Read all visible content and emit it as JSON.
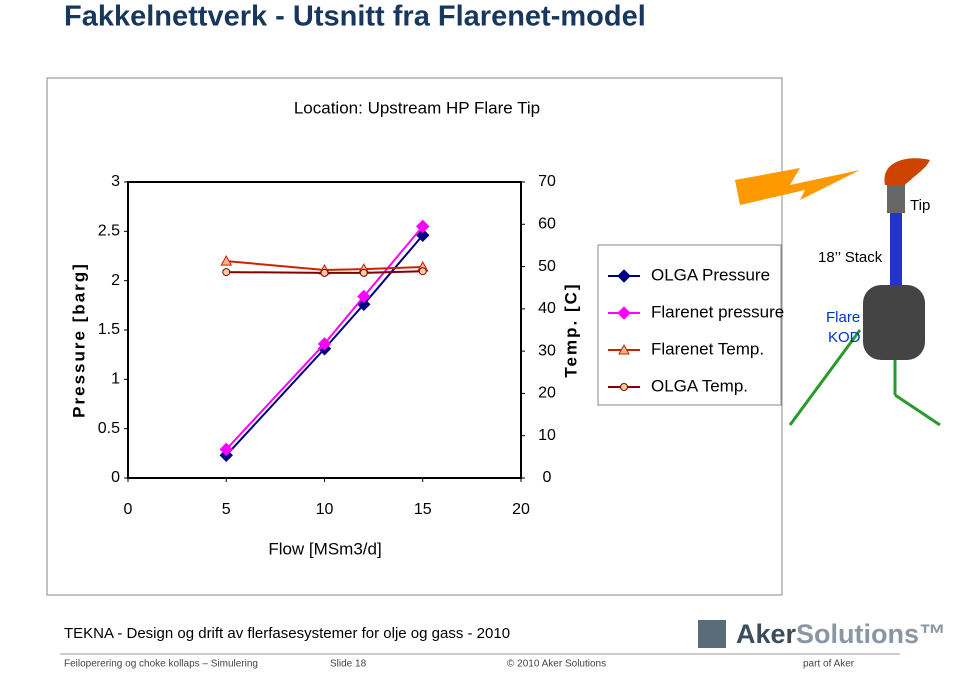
{
  "slide": {
    "title": "Fakkelnettverk - Utsnitt fra Flarenet-model",
    "diagram": {
      "tip": "Tip",
      "stack": "18’’ Stack",
      "kod_1": "Flare",
      "kod_2": "KOD"
    },
    "subtitle": "TEKNA - Design og drift av flerfasesystemer for olje og gass - 2010",
    "logo": {
      "part1": "Aker",
      "part2": "Solutions™"
    },
    "footer": {
      "left": "Feiloperering og choke kollaps – Simulering",
      "slide": "Slide 18",
      "copyright": "© 2010 Aker Solutions",
      "right": "part of Aker"
    }
  },
  "chart_data": {
    "type": "line",
    "title": "Location: Upstream HP Flare Tip",
    "x_label": "Flow [MSm3/d]",
    "y_label": "Pressure [barg]",
    "y2_label": "Temp. [C]",
    "x": [
      5,
      10,
      12,
      15
    ],
    "xlim": [
      0,
      20
    ],
    "xticks": [
      0,
      5,
      10,
      15,
      20
    ],
    "ylim": [
      0,
      3
    ],
    "yticks": [
      0,
      0.5,
      1,
      1.5,
      2,
      2.5,
      3
    ],
    "y2lim": [
      0,
      70
    ],
    "y2ticks": [
      0,
      10,
      20,
      30,
      40,
      50,
      60,
      70
    ],
    "series": [
      {
        "name": "OLGA Pressure",
        "color": "#000080",
        "marker": "diamond",
        "values": [
          0.23,
          1.31,
          1.76,
          2.46
        ]
      },
      {
        "name": "Flarenet pressure",
        "color": "#ff00ff",
        "marker": "diamond",
        "values": [
          0.29,
          1.36,
          1.84,
          2.55
        ]
      },
      {
        "name": "Flarenet Temp.",
        "color": "#cc2200",
        "marker": "triangle",
        "axis": "y2",
        "values": [
          51.3,
          49.2,
          49.4,
          49.9
        ]
      },
      {
        "name": "OLGA Temp.",
        "color": "#800000",
        "marker": "circle",
        "axis": "y2",
        "values": [
          48.7,
          48.5,
          48.5,
          48.9
        ]
      }
    ]
  }
}
